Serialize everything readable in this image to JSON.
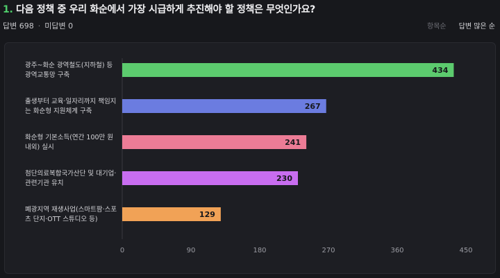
{
  "question": {
    "number": "1.",
    "text": "다음 정책 중 우리 화순에서 가장 시급하게 추진해야 할 정책은 무엇인가요?"
  },
  "stats": {
    "answered": "답변 698",
    "unanswered": "미답변 0"
  },
  "sort": {
    "by_item": "항목순",
    "by_count": "답변 많은 순"
  },
  "colors": {
    "accent": "#4fce6b",
    "series": [
      "#5ccb6e",
      "#6b7ce0",
      "#ec7c96",
      "#c86df0",
      "#f1a256"
    ]
  },
  "chart_data": {
    "type": "bar",
    "orientation": "horizontal",
    "categories": [
      [
        "광주~화순 광역철도(지하철) 등",
        "광역교통망 구축"
      ],
      [
        "출생부터 교육·일자리까지 책임지",
        "는 화순형 지원체계 구축"
      ],
      [
        "화순형 기본소득(연간 100만 원",
        "내외) 실시"
      ],
      [
        "첨단의료복합국가산단 및 대기업·",
        "관련기관 유치"
      ],
      [
        "폐광지역 재생사업(스마트팜·스포",
        "츠 단지·OTT 스튜디오 등)"
      ]
    ],
    "values": [
      434,
      267,
      241,
      230,
      129
    ],
    "xlim": [
      0,
      450
    ],
    "ticks": [
      "0",
      "90",
      "180",
      "270",
      "360",
      "450"
    ],
    "grid": false
  }
}
